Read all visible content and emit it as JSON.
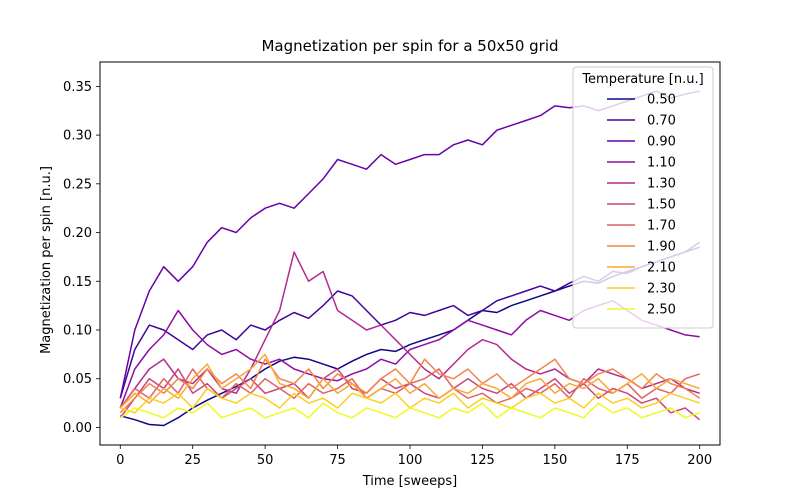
{
  "chart_data": {
    "type": "line",
    "title": "Magnetization per spin for a 50x50 grid",
    "xlabel": "Time [sweeps]",
    "ylabel": "Magnetization per spin [n.u.]",
    "xlim": [
      -7,
      207
    ],
    "ylim": [
      -0.018,
      0.375
    ],
    "xticks": [
      0,
      25,
      50,
      75,
      100,
      125,
      150,
      175,
      200
    ],
    "xtick_labels": [
      "0",
      "25",
      "50",
      "75",
      "100",
      "125",
      "150",
      "175",
      "200"
    ],
    "yticks": [
      0.0,
      0.05,
      0.1,
      0.15,
      0.2,
      0.25,
      0.3,
      0.35
    ],
    "ytick_labels": [
      "0.00",
      "0.05",
      "0.10",
      "0.15",
      "0.20",
      "0.25",
      "0.30",
      "0.35"
    ],
    "grid": false,
    "legend": {
      "title": "Temperature [n.u.]",
      "placement": "top-right"
    },
    "series": [
      {
        "name": "0.50",
        "color": "#0d0887",
        "x": [
          0,
          5,
          10,
          15,
          20,
          25,
          30,
          35,
          40,
          45,
          50,
          55,
          60,
          65,
          70,
          75,
          80,
          85,
          90,
          95,
          100,
          105,
          110,
          115,
          120,
          125,
          130,
          135,
          140,
          145,
          150,
          155,
          160,
          165,
          170,
          175,
          180,
          185,
          190,
          195,
          200
        ],
        "values": [
          0.012,
          0.008,
          0.003,
          0.002,
          0.01,
          0.02,
          0.028,
          0.035,
          0.042,
          0.05,
          0.06,
          0.068,
          0.072,
          0.07,
          0.065,
          0.06,
          0.068,
          0.075,
          0.08,
          0.078,
          0.085,
          0.09,
          0.095,
          0.1,
          0.11,
          0.12,
          0.118,
          0.125,
          0.13,
          0.135,
          0.14,
          0.145,
          0.15,
          0.148,
          0.155,
          0.16,
          0.165,
          0.17,
          0.175,
          0.18,
          0.185
        ]
      },
      {
        "name": "0.70",
        "color": "#41049d",
        "x": [
          0,
          5,
          10,
          15,
          20,
          25,
          30,
          35,
          40,
          45,
          50,
          55,
          60,
          65,
          70,
          75,
          80,
          85,
          90,
          95,
          100,
          105,
          110,
          115,
          120,
          125,
          130,
          135,
          140,
          145,
          150,
          155,
          160,
          165,
          170,
          175,
          180,
          185,
          190,
          195,
          200
        ],
        "values": [
          0.03,
          0.08,
          0.105,
          0.1,
          0.09,
          0.08,
          0.095,
          0.1,
          0.09,
          0.105,
          0.1,
          0.11,
          0.118,
          0.112,
          0.125,
          0.14,
          0.135,
          0.12,
          0.105,
          0.11,
          0.118,
          0.115,
          0.12,
          0.125,
          0.115,
          0.12,
          0.13,
          0.135,
          0.14,
          0.145,
          0.14,
          0.148,
          0.155,
          0.15,
          0.16,
          0.158,
          0.165,
          0.17,
          0.175,
          0.18,
          0.19
        ]
      },
      {
        "name": "0.90",
        "color": "#6a00a8",
        "x": [
          0,
          5,
          10,
          15,
          20,
          25,
          30,
          35,
          40,
          45,
          50,
          55,
          60,
          65,
          70,
          75,
          80,
          85,
          90,
          95,
          100,
          105,
          110,
          115,
          120,
          125,
          130,
          135,
          140,
          145,
          150,
          155,
          160,
          165,
          170,
          175,
          180,
          185,
          190,
          195,
          200
        ],
        "values": [
          0.03,
          0.1,
          0.14,
          0.165,
          0.15,
          0.165,
          0.19,
          0.205,
          0.2,
          0.215,
          0.225,
          0.23,
          0.225,
          0.24,
          0.255,
          0.275,
          0.27,
          0.265,
          0.28,
          0.27,
          0.275,
          0.28,
          0.28,
          0.29,
          0.295,
          0.29,
          0.305,
          0.31,
          0.315,
          0.32,
          0.33,
          0.328,
          0.33,
          0.325,
          0.33,
          0.335,
          0.34,
          0.345,
          0.338,
          0.342,
          0.345
        ]
      },
      {
        "name": "1.10",
        "color": "#8f0da4",
        "x": [
          0,
          5,
          10,
          15,
          20,
          25,
          30,
          35,
          40,
          45,
          50,
          55,
          60,
          65,
          70,
          75,
          80,
          85,
          90,
          95,
          100,
          105,
          110,
          115,
          120,
          125,
          130,
          135,
          140,
          145,
          150,
          155,
          160,
          165,
          170,
          175,
          180,
          185,
          190,
          195,
          200
        ],
        "values": [
          0.02,
          0.06,
          0.08,
          0.095,
          0.12,
          0.1,
          0.085,
          0.075,
          0.08,
          0.07,
          0.065,
          0.07,
          0.06,
          0.055,
          0.05,
          0.048,
          0.055,
          0.06,
          0.07,
          0.065,
          0.08,
          0.085,
          0.09,
          0.1,
          0.11,
          0.105,
          0.1,
          0.095,
          0.11,
          0.12,
          0.115,
          0.11,
          0.12,
          0.125,
          0.13,
          0.12,
          0.11,
          0.105,
          0.1,
          0.095,
          0.093
        ]
      },
      {
        "name": "1.30",
        "color": "#b12a90",
        "x": [
          0,
          5,
          10,
          15,
          20,
          25,
          30,
          35,
          40,
          45,
          50,
          55,
          60,
          65,
          70,
          75,
          80,
          85,
          90,
          95,
          100,
          105,
          110,
          115,
          120,
          125,
          130,
          135,
          140,
          145,
          150,
          155,
          160,
          165,
          170,
          175,
          180,
          185,
          190,
          195,
          200
        ],
        "values": [
          0.02,
          0.04,
          0.06,
          0.07,
          0.05,
          0.045,
          0.06,
          0.04,
          0.035,
          0.06,
          0.09,
          0.12,
          0.18,
          0.15,
          0.16,
          0.12,
          0.11,
          0.1,
          0.105,
          0.09,
          0.075,
          0.06,
          0.05,
          0.065,
          0.08,
          0.09,
          0.085,
          0.07,
          0.06,
          0.055,
          0.06,
          0.05,
          0.045,
          0.06,
          0.055,
          0.05,
          0.04,
          0.045,
          0.05,
          0.04,
          0.035
        ]
      },
      {
        "name": "1.50",
        "color": "#cc4778",
        "x": [
          0,
          5,
          10,
          15,
          20,
          25,
          30,
          35,
          40,
          45,
          50,
          55,
          60,
          65,
          70,
          75,
          80,
          85,
          90,
          95,
          100,
          105,
          110,
          115,
          120,
          125,
          130,
          135,
          140,
          145,
          150,
          155,
          160,
          165,
          170,
          175,
          180,
          185,
          190,
          195,
          200
        ],
        "values": [
          0.01,
          0.03,
          0.05,
          0.04,
          0.06,
          0.035,
          0.045,
          0.03,
          0.04,
          0.05,
          0.035,
          0.04,
          0.045,
          0.03,
          0.05,
          0.06,
          0.04,
          0.035,
          0.05,
          0.04,
          0.045,
          0.035,
          0.03,
          0.04,
          0.05,
          0.04,
          0.035,
          0.045,
          0.03,
          0.04,
          0.05,
          0.035,
          0.045,
          0.03,
          0.04,
          0.035,
          0.025,
          0.03,
          0.015,
          0.02,
          0.008
        ]
      },
      {
        "name": "1.70",
        "color": "#e16462",
        "x": [
          0,
          5,
          10,
          15,
          20,
          25,
          30,
          35,
          40,
          45,
          50,
          55,
          60,
          65,
          70,
          75,
          80,
          85,
          90,
          95,
          100,
          105,
          110,
          115,
          120,
          125,
          130,
          135,
          140,
          145,
          150,
          155,
          160,
          165,
          170,
          175,
          180,
          185,
          190,
          195,
          200
        ],
        "values": [
          0.02,
          0.04,
          0.03,
          0.05,
          0.035,
          0.06,
          0.04,
          0.03,
          0.045,
          0.035,
          0.05,
          0.04,
          0.03,
          0.045,
          0.035,
          0.04,
          0.05,
          0.03,
          0.04,
          0.035,
          0.045,
          0.05,
          0.06,
          0.04,
          0.03,
          0.035,
          0.025,
          0.03,
          0.04,
          0.035,
          0.045,
          0.03,
          0.05,
          0.04,
          0.035,
          0.045,
          0.03,
          0.04,
          0.035,
          0.05,
          0.055
        ]
      },
      {
        "name": "1.90",
        "color": "#f2844b",
        "x": [
          0,
          5,
          10,
          15,
          20,
          25,
          30,
          35,
          40,
          45,
          50,
          55,
          60,
          65,
          70,
          75,
          80,
          85,
          90,
          95,
          100,
          105,
          110,
          115,
          120,
          125,
          130,
          135,
          140,
          145,
          150,
          155,
          160,
          165,
          170,
          175,
          180,
          185,
          190,
          195,
          200
        ],
        "values": [
          0.015,
          0.03,
          0.045,
          0.035,
          0.05,
          0.04,
          0.06,
          0.045,
          0.055,
          0.04,
          0.07,
          0.05,
          0.045,
          0.06,
          0.04,
          0.055,
          0.045,
          0.035,
          0.05,
          0.06,
          0.045,
          0.07,
          0.055,
          0.05,
          0.06,
          0.045,
          0.055,
          0.04,
          0.05,
          0.06,
          0.07,
          0.05,
          0.045,
          0.055,
          0.06,
          0.05,
          0.04,
          0.055,
          0.045,
          0.04,
          0.03
        ]
      },
      {
        "name": "2.10",
        "color": "#fca636",
        "x": [
          0,
          5,
          10,
          15,
          20,
          25,
          30,
          35,
          40,
          45,
          50,
          55,
          60,
          65,
          70,
          75,
          80,
          85,
          90,
          95,
          100,
          105,
          110,
          115,
          120,
          125,
          130,
          135,
          140,
          145,
          150,
          155,
          160,
          165,
          170,
          175,
          180,
          185,
          190,
          195,
          200
        ],
        "values": [
          0.02,
          0.035,
          0.025,
          0.04,
          0.03,
          0.05,
          0.065,
          0.04,
          0.05,
          0.06,
          0.075,
          0.045,
          0.04,
          0.03,
          0.05,
          0.035,
          0.045,
          0.03,
          0.04,
          0.05,
          0.035,
          0.045,
          0.03,
          0.04,
          0.035,
          0.045,
          0.04,
          0.03,
          0.045,
          0.05,
          0.035,
          0.045,
          0.04,
          0.05,
          0.035,
          0.045,
          0.055,
          0.04,
          0.05,
          0.045,
          0.04
        ]
      },
      {
        "name": "2.30",
        "color": "#fcce25",
        "x": [
          0,
          5,
          10,
          15,
          20,
          25,
          30,
          35,
          40,
          45,
          50,
          55,
          60,
          65,
          70,
          75,
          80,
          85,
          90,
          95,
          100,
          105,
          110,
          115,
          120,
          125,
          130,
          135,
          140,
          145,
          150,
          155,
          160,
          165,
          170,
          175,
          180,
          185,
          190,
          195,
          200
        ],
        "values": [
          0.02,
          0.015,
          0.03,
          0.025,
          0.035,
          0.02,
          0.04,
          0.03,
          0.025,
          0.035,
          0.03,
          0.02,
          0.035,
          0.025,
          0.03,
          0.02,
          0.035,
          0.03,
          0.025,
          0.035,
          0.02,
          0.03,
          0.025,
          0.035,
          0.02,
          0.03,
          0.025,
          0.02,
          0.03,
          0.035,
          0.025,
          0.03,
          0.02,
          0.035,
          0.025,
          0.03,
          0.02,
          0.025,
          0.035,
          0.03,
          0.025
        ]
      },
      {
        "name": "2.50",
        "color": "#f0f921",
        "x": [
          0,
          5,
          10,
          15,
          20,
          25,
          30,
          35,
          40,
          45,
          50,
          55,
          60,
          65,
          70,
          75,
          80,
          85,
          90,
          95,
          100,
          105,
          110,
          115,
          120,
          125,
          130,
          135,
          140,
          145,
          150,
          155,
          160,
          165,
          170,
          175,
          180,
          185,
          190,
          195,
          200
        ],
        "values": [
          0.01,
          0.02,
          0.015,
          0.01,
          0.02,
          0.015,
          0.025,
          0.01,
          0.015,
          0.02,
          0.01,
          0.015,
          0.02,
          0.01,
          0.025,
          0.015,
          0.01,
          0.02,
          0.015,
          0.01,
          0.02,
          0.015,
          0.01,
          0.02,
          0.015,
          0.025,
          0.01,
          0.02,
          0.015,
          0.01,
          0.02,
          0.015,
          0.01,
          0.025,
          0.015,
          0.02,
          0.01,
          0.015,
          0.02,
          0.01,
          0.015
        ]
      }
    ]
  }
}
